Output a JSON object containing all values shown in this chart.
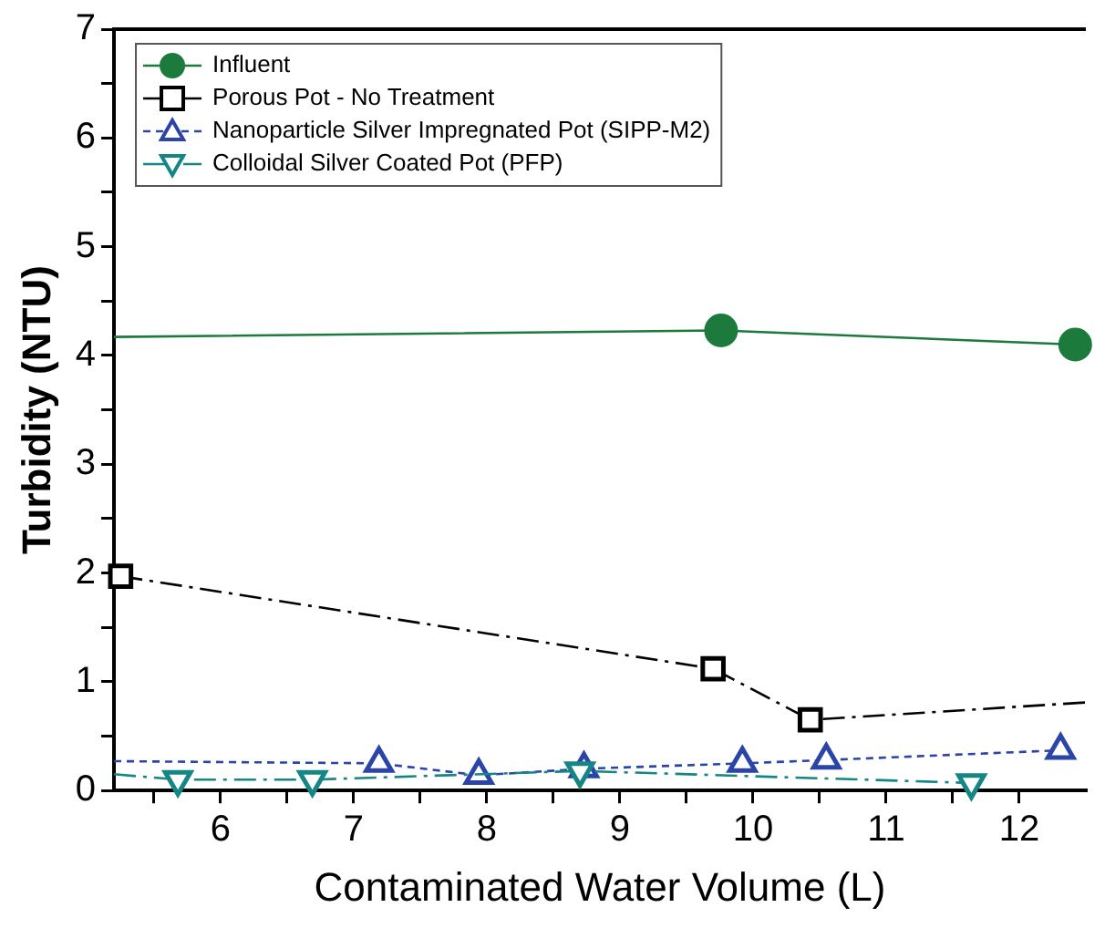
{
  "chart_data": {
    "type": "line",
    "xlabel": "Contaminated Water Volume (L)",
    "ylabel": "Turbidity (NTU)",
    "xlim": [
      5.2,
      12.5
    ],
    "xticks": [
      {
        "value": 5.5,
        "label": null
      },
      6,
      {
        "value": 6.5,
        "label": null
      },
      7,
      {
        "value": 7.5,
        "label": null
      },
      8,
      {
        "value": 8.5,
        "label": null
      },
      9,
      {
        "value": 9.5,
        "label": null
      },
      10,
      {
        "value": 10.5,
        "label": null
      },
      11,
      {
        "value": 11.5,
        "label": null
      },
      12
    ],
    "ylim": [
      0,
      7
    ],
    "yticks": [
      0,
      {
        "value": 0.5,
        "label": null
      },
      1,
      {
        "value": 1.5,
        "label": null
      },
      2,
      {
        "value": 2.5,
        "label": null
      },
      3,
      {
        "value": 3.5,
        "label": null
      },
      4,
      {
        "value": 4.5,
        "label": null
      },
      5,
      {
        "value": 5.5,
        "label": null
      },
      6,
      {
        "value": 6.5,
        "label": null
      },
      7
    ],
    "grid": false,
    "legend": "top left",
    "series": [
      {
        "name": "Influent",
        "color": "#1b7a3c",
        "marker": "circle",
        "line_style": "solid",
        "x": [
          5.2,
          9.76,
          12.42
        ],
        "values": [
          4.17,
          4.23,
          4.1
        ]
      },
      {
        "name": "Porous Pot - No Treatment",
        "color": "#000000",
        "marker": "square",
        "line_style": "dashed",
        "x": [
          5.25,
          9.7,
          10.43,
          12.5
        ],
        "values": [
          1.97,
          1.12,
          0.65,
          0.81
        ]
      },
      {
        "name": "Nanoparticle Silver Impregnated Pot (SIPP-M2)",
        "color": "#2b44a8",
        "marker": "triangle",
        "line_style": "dotted",
        "x": [
          5.2,
          7.19,
          7.94,
          8.73,
          9.92,
          10.55,
          12.31
        ],
        "values": [
          0.27,
          0.25,
          0.14,
          0.2,
          0.25,
          0.28,
          0.37
        ]
      },
      {
        "name": "Colloidal Silver Coated Pot (PFP)",
        "color": "#168585",
        "marker": "triangle_down",
        "line_style": "dashed",
        "x": [
          5.2,
          5.68,
          6.69,
          8.7,
          11.64
        ],
        "values": [
          0.15,
          0.1,
          0.1,
          0.18,
          0.07
        ]
      }
    ]
  }
}
